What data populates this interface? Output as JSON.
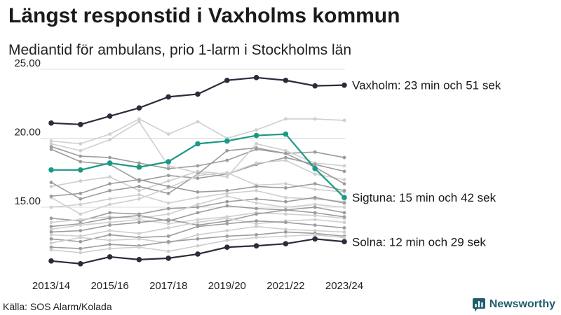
{
  "title": "Längst responstid i Vaxholms kommun",
  "subtitle": "Mediantid för ambulans, prio 1-larm i Stockholms län",
  "source": "Källa: SOS Alarm/Kolada",
  "brand": "Newsworthy",
  "colors": {
    "dark": "#2b2b3b",
    "teal": "#1a9986",
    "grey_dark": "#9c9c9c",
    "grey_light": "#cfcfcf",
    "grid": "#dcdcdc",
    "brand": "#1f5d6e"
  },
  "chart_data": {
    "type": "line",
    "x": [
      "2013/14",
      "2014/15",
      "2015/16",
      "2016/17",
      "2017/18",
      "2018/19",
      "2019/20",
      "2020/21",
      "2021/22",
      "2022/23",
      "2023/24"
    ],
    "x_tick_labels": [
      "2013/14",
      "2015/16",
      "2017/18",
      "2019/20",
      "2021/22",
      "2023/24"
    ],
    "y_tick_labels": [
      "15.00",
      "20.00",
      "25.00"
    ],
    "ylim": [
      10.4,
      25.0
    ],
    "grid": true,
    "highlighted_series": [
      {
        "key": "vaxholm",
        "color": "#2b2b3b",
        "label": "Vaxholm: 23 min och 51 sek",
        "values": [
          21.1,
          21.0,
          21.6,
          22.2,
          23.0,
          23.2,
          24.2,
          24.4,
          24.2,
          23.8,
          23.85
        ]
      },
      {
        "key": "sigtuna",
        "color": "#1a9986",
        "label": "Sigtuna: 15 min och 42 sek",
        "values": [
          17.7,
          17.7,
          18.2,
          17.9,
          18.3,
          19.6,
          19.8,
          20.2,
          20.3,
          17.8,
          15.7
        ]
      },
      {
        "key": "solna",
        "color": "#2b2b3b",
        "label": "Solna: 12 min och 29 sek",
        "values": [
          11.1,
          10.9,
          11.4,
          11.2,
          11.3,
          11.6,
          12.1,
          12.2,
          12.35,
          12.7,
          12.5
        ]
      }
    ],
    "background_series": [
      {
        "tone": "light",
        "values": [
          19.8,
          19.6,
          20.3,
          21.4,
          20.3,
          21.2,
          20.0,
          20.6,
          21.4,
          21.4,
          21.3
        ]
      },
      {
        "tone": "dark",
        "values": [
          19.4,
          18.7,
          18.6,
          18.2,
          17.8,
          18.0,
          18.4,
          19.2,
          18.9,
          19.0,
          18.6
        ]
      },
      {
        "tone": "light",
        "values": [
          19.6,
          19.1,
          19.9,
          21.2,
          18.0,
          17.5,
          17.2,
          19.6,
          19.1,
          18.2,
          18.0
        ]
      },
      {
        "tone": "dark",
        "values": [
          19.2,
          18.3,
          18.1,
          16.9,
          17.3,
          17.1,
          17.4,
          18.1,
          18.6,
          18.1,
          17.6
        ]
      },
      {
        "tone": "light",
        "values": [
          16.5,
          16.9,
          17.2,
          16.2,
          16.9,
          17.6,
          17.4,
          18.2,
          18.4,
          17.4,
          17.0
        ]
      },
      {
        "tone": "dark",
        "values": [
          16.8,
          15.6,
          16.2,
          16.5,
          16.0,
          17.4,
          19.1,
          19.3,
          18.9,
          17.9,
          16.7
        ]
      },
      {
        "tone": "light",
        "values": [
          15.7,
          14.5,
          15.2,
          15.6,
          16.4,
          17.3,
          17.5,
          16.6,
          16.7,
          16.3,
          16.1
        ]
      },
      {
        "tone": "dark",
        "values": [
          15.8,
          16.0,
          16.7,
          17.0,
          16.5,
          16.1,
          16.2,
          16.5,
          16.4,
          16.7,
          16.2
        ]
      },
      {
        "tone": "light",
        "values": [
          15.0,
          15.2,
          15.6,
          15.9,
          15.3,
          15.7,
          16.0,
          16.2,
          15.7,
          15.6,
          15.4
        ]
      },
      {
        "tone": "dark",
        "values": [
          14.2,
          14.0,
          14.6,
          14.5,
          14.9,
          15.0,
          15.4,
          15.6,
          15.4,
          15.7,
          15.3
        ]
      },
      {
        "tone": "light",
        "values": [
          13.9,
          14.1,
          14.3,
          14.2,
          14.5,
          15.2,
          15.8,
          15.3,
          15.0,
          15.2,
          15.0
        ]
      },
      {
        "tone": "dark",
        "values": [
          13.6,
          13.8,
          14.2,
          14.4,
          14.0,
          14.6,
          15.1,
          14.9,
          14.8,
          15.0,
          14.6
        ]
      },
      {
        "tone": "light",
        "values": [
          13.4,
          13.7,
          13.9,
          14.1,
          13.8,
          14.1,
          14.3,
          14.6,
          14.5,
          14.4,
          14.2
        ]
      },
      {
        "tone": "dark",
        "values": [
          13.2,
          13.3,
          13.7,
          13.9,
          14.1,
          13.7,
          14.0,
          14.5,
          14.8,
          14.6,
          14.3
        ]
      },
      {
        "tone": "light",
        "values": [
          13.0,
          12.9,
          13.3,
          13.1,
          13.5,
          13.9,
          14.2,
          13.8,
          14.0,
          14.1,
          13.9
        ]
      },
      {
        "tone": "dark",
        "values": [
          12.7,
          12.5,
          13.0,
          12.8,
          12.9,
          13.6,
          13.8,
          14.0,
          13.9,
          13.7,
          13.5
        ]
      },
      {
        "tone": "light",
        "values": [
          12.4,
          12.8,
          12.6,
          12.7,
          12.4,
          13.0,
          13.3,
          13.6,
          13.4,
          13.3,
          13.2
        ]
      },
      {
        "tone": "dark",
        "values": [
          12.1,
          12.0,
          12.3,
          12.2,
          12.5,
          12.7,
          12.9,
          13.0,
          13.2,
          13.1,
          12.9
        ]
      },
      {
        "tone": "light",
        "values": [
          11.9,
          11.7,
          12.0,
          12.1,
          11.8,
          12.2,
          12.6,
          12.8,
          12.9,
          13.0,
          12.8
        ]
      }
    ]
  }
}
